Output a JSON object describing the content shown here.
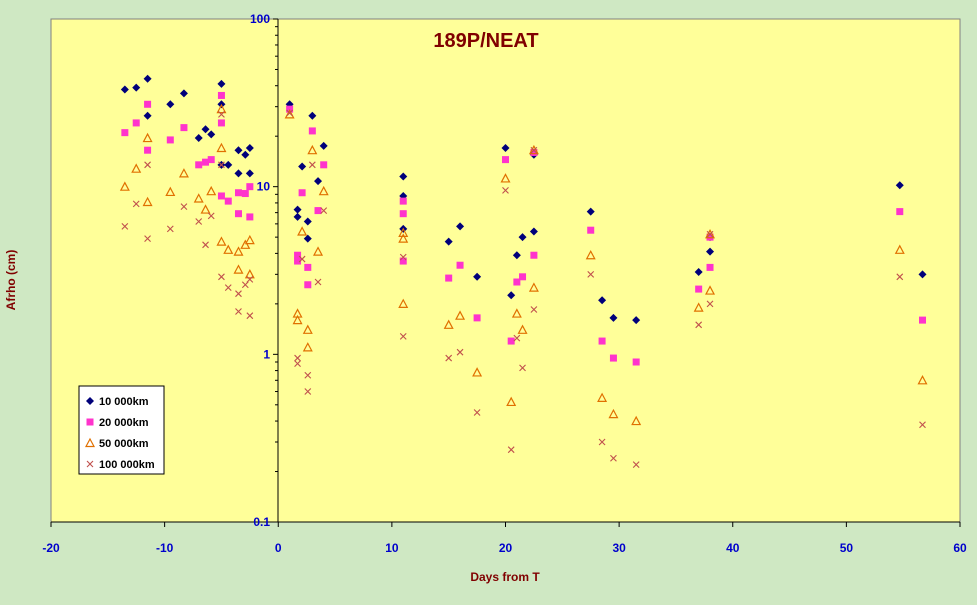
{
  "colors": {
    "background": "#cfe8c3",
    "plot_area": "#ffff99",
    "axis_text": "#0000cc",
    "axis_title": "#800000",
    "title": "#800000",
    "series": [
      "#00007a",
      "#ff33cc",
      "#e07000",
      "#c0504d"
    ]
  },
  "chart_data": {
    "type": "scatter",
    "title": "189P/NEAT",
    "xlabel": "Days from T",
    "ylabel": "Afrho (cm)",
    "xlim": [
      -20,
      60
    ],
    "ylim": [
      0.1,
      100
    ],
    "yscale": "log",
    "grid": false,
    "legend_position": "lower-left",
    "x_ticks": [
      {
        "value": -20,
        "label": "-20"
      },
      {
        "value": -10,
        "label": "-10"
      },
      {
        "value": 0,
        "label": "0"
      },
      {
        "value": 10,
        "label": "10"
      },
      {
        "value": 20,
        "label": "20"
      },
      {
        "value": 30,
        "label": "30"
      },
      {
        "value": 40,
        "label": "40"
      },
      {
        "value": 50,
        "label": "50"
      },
      {
        "value": 60,
        "label": "60"
      }
    ],
    "y_ticks": [
      {
        "value": 0.1,
        "label": "0.1"
      },
      {
        "value": 1,
        "label": "1"
      },
      {
        "value": 10,
        "label": "10"
      },
      {
        "value": 100,
        "label": "100"
      }
    ],
    "series": [
      {
        "name": "10 000km",
        "marker": "diamond",
        "points": [
          {
            "x": -13.5,
            "y": 38
          },
          {
            "x": -12.5,
            "y": 39
          },
          {
            "x": -11.5,
            "y": 44
          },
          {
            "x": -11.5,
            "y": 26.5
          },
          {
            "x": -9.5,
            "y": 31
          },
          {
            "x": -8.3,
            "y": 36
          },
          {
            "x": -7,
            "y": 19.5
          },
          {
            "x": -6.4,
            "y": 22
          },
          {
            "x": -5.9,
            "y": 20.5
          },
          {
            "x": -5,
            "y": 41
          },
          {
            "x": -5,
            "y": 31
          },
          {
            "x": -5,
            "y": 13.5
          },
          {
            "x": -4.4,
            "y": 13.5
          },
          {
            "x": -3.5,
            "y": 16.5
          },
          {
            "x": -3.5,
            "y": 12
          },
          {
            "x": -2.9,
            "y": 15.5
          },
          {
            "x": -2.5,
            "y": 17
          },
          {
            "x": -2.5,
            "y": 12
          },
          {
            "x": 1,
            "y": 31
          },
          {
            "x": 1.7,
            "y": 7.3
          },
          {
            "x": 1.7,
            "y": 6.6
          },
          {
            "x": 2.1,
            "y": 13.2
          },
          {
            "x": 2.6,
            "y": 6.2
          },
          {
            "x": 2.6,
            "y": 4.9
          },
          {
            "x": 3,
            "y": 26.5
          },
          {
            "x": 3.5,
            "y": 10.8
          },
          {
            "x": 4,
            "y": 17.5
          },
          {
            "x": 11,
            "y": 11.5
          },
          {
            "x": 11,
            "y": 8.8
          },
          {
            "x": 11,
            "y": 5.6
          },
          {
            "x": 15,
            "y": 4.7
          },
          {
            "x": 16,
            "y": 5.8
          },
          {
            "x": 17.5,
            "y": 2.9
          },
          {
            "x": 20,
            "y": 17
          },
          {
            "x": 20.5,
            "y": 2.25
          },
          {
            "x": 21,
            "y": 3.9
          },
          {
            "x": 21.5,
            "y": 5
          },
          {
            "x": 22.5,
            "y": 15.5
          },
          {
            "x": 22.5,
            "y": 5.4
          },
          {
            "x": 27.5,
            "y": 7.1
          },
          {
            "x": 28.5,
            "y": 2.1
          },
          {
            "x": 29.5,
            "y": 1.65
          },
          {
            "x": 31.5,
            "y": 1.6
          },
          {
            "x": 37,
            "y": 3.1
          },
          {
            "x": 38,
            "y": 5
          },
          {
            "x": 38,
            "y": 4.1
          },
          {
            "x": 54.7,
            "y": 10.2
          },
          {
            "x": 56.7,
            "y": 3
          }
        ]
      },
      {
        "name": "20 000km",
        "marker": "square",
        "points": [
          {
            "x": -13.5,
            "y": 21
          },
          {
            "x": -12.5,
            "y": 24
          },
          {
            "x": -11.5,
            "y": 31
          },
          {
            "x": -11.5,
            "y": 16.5
          },
          {
            "x": -9.5,
            "y": 19
          },
          {
            "x": -8.3,
            "y": 22.5
          },
          {
            "x": -7,
            "y": 13.5
          },
          {
            "x": -6.4,
            "y": 14
          },
          {
            "x": -5.9,
            "y": 14.5
          },
          {
            "x": -5,
            "y": 35
          },
          {
            "x": -5,
            "y": 24
          },
          {
            "x": -5,
            "y": 8.8
          },
          {
            "x": -4.4,
            "y": 8.2
          },
          {
            "x": -3.5,
            "y": 9.2
          },
          {
            "x": -3.5,
            "y": 6.9
          },
          {
            "x": -2.9,
            "y": 9.1
          },
          {
            "x": -2.5,
            "y": 10
          },
          {
            "x": -2.5,
            "y": 6.6
          },
          {
            "x": 1,
            "y": 29
          },
          {
            "x": 1.7,
            "y": 3.9
          },
          {
            "x": 1.7,
            "y": 3.6
          },
          {
            "x": 2.1,
            "y": 9.2
          },
          {
            "x": 2.6,
            "y": 3.3
          },
          {
            "x": 2.6,
            "y": 2.6
          },
          {
            "x": 3,
            "y": 21.5
          },
          {
            "x": 3.5,
            "y": 7.2
          },
          {
            "x": 4,
            "y": 13.5
          },
          {
            "x": 11,
            "y": 8.2
          },
          {
            "x": 11,
            "y": 6.9
          },
          {
            "x": 11,
            "y": 3.6
          },
          {
            "x": 15,
            "y": 2.85
          },
          {
            "x": 16,
            "y": 3.4
          },
          {
            "x": 17.5,
            "y": 1.65
          },
          {
            "x": 20,
            "y": 14.5
          },
          {
            "x": 20.5,
            "y": 1.2
          },
          {
            "x": 21,
            "y": 2.7
          },
          {
            "x": 21.5,
            "y": 2.9
          },
          {
            "x": 22.5,
            "y": 16
          },
          {
            "x": 22.5,
            "y": 3.9
          },
          {
            "x": 27.5,
            "y": 5.5
          },
          {
            "x": 28.5,
            "y": 1.2
          },
          {
            "x": 29.5,
            "y": 0.95
          },
          {
            "x": 31.5,
            "y": 0.9
          },
          {
            "x": 37,
            "y": 2.45
          },
          {
            "x": 38,
            "y": 5
          },
          {
            "x": 38,
            "y": 3.3
          },
          {
            "x": 54.7,
            "y": 7.1
          },
          {
            "x": 56.7,
            "y": 1.6
          }
        ]
      },
      {
        "name": "50 000km",
        "marker": "triangle",
        "points": [
          {
            "x": -13.5,
            "y": 10
          },
          {
            "x": -12.5,
            "y": 12.8
          },
          {
            "x": -11.5,
            "y": 19.5
          },
          {
            "x": -11.5,
            "y": 8.1
          },
          {
            "x": -9.5,
            "y": 9.3
          },
          {
            "x": -8.3,
            "y": 12
          },
          {
            "x": -7,
            "y": 8.5
          },
          {
            "x": -6.4,
            "y": 7.3
          },
          {
            "x": -5.9,
            "y": 9.4
          },
          {
            "x": -5,
            "y": 29
          },
          {
            "x": -5,
            "y": 17
          },
          {
            "x": -5,
            "y": 4.7
          },
          {
            "x": -4.4,
            "y": 4.2
          },
          {
            "x": -3.5,
            "y": 4.1
          },
          {
            "x": -3.5,
            "y": 3.2
          },
          {
            "x": -2.9,
            "y": 4.5
          },
          {
            "x": -2.5,
            "y": 4.8
          },
          {
            "x": -2.5,
            "y": 3
          },
          {
            "x": 1,
            "y": 27
          },
          {
            "x": 1.7,
            "y": 1.75
          },
          {
            "x": 1.7,
            "y": 1.6
          },
          {
            "x": 2.1,
            "y": 5.4
          },
          {
            "x": 2.6,
            "y": 1.4
          },
          {
            "x": 2.6,
            "y": 1.1
          },
          {
            "x": 3,
            "y": 16.5
          },
          {
            "x": 3.5,
            "y": 4.1
          },
          {
            "x": 4,
            "y": 9.4
          },
          {
            "x": 11,
            "y": 5.3
          },
          {
            "x": 11,
            "y": 4.9
          },
          {
            "x": 11,
            "y": 2
          },
          {
            "x": 15,
            "y": 1.5
          },
          {
            "x": 16,
            "y": 1.7
          },
          {
            "x": 17.5,
            "y": 0.78
          },
          {
            "x": 20,
            "y": 11.2
          },
          {
            "x": 20.5,
            "y": 0.52
          },
          {
            "x": 21,
            "y": 1.75
          },
          {
            "x": 21.5,
            "y": 1.4
          },
          {
            "x": 22.5,
            "y": 16.5
          },
          {
            "x": 22.5,
            "y": 2.5
          },
          {
            "x": 27.5,
            "y": 3.9
          },
          {
            "x": 28.5,
            "y": 0.55
          },
          {
            "x": 29.5,
            "y": 0.44
          },
          {
            "x": 31.5,
            "y": 0.4
          },
          {
            "x": 37,
            "y": 1.9
          },
          {
            "x": 38,
            "y": 5.2
          },
          {
            "x": 38,
            "y": 2.4
          },
          {
            "x": 54.7,
            "y": 4.2
          },
          {
            "x": 56.7,
            "y": 0.7
          }
        ]
      },
      {
        "name": "100 000km",
        "marker": "x",
        "points": [
          {
            "x": -13.5,
            "y": 5.8
          },
          {
            "x": -12.5,
            "y": 7.9
          },
          {
            "x": -11.5,
            "y": 13.5
          },
          {
            "x": -11.5,
            "y": 4.9
          },
          {
            "x": -9.5,
            "y": 5.6
          },
          {
            "x": -8.3,
            "y": 7.6
          },
          {
            "x": -7,
            "y": 6.2
          },
          {
            "x": -6.4,
            "y": 4.5
          },
          {
            "x": -5.9,
            "y": 6.7
          },
          {
            "x": -5,
            "y": 27
          },
          {
            "x": -5,
            "y": 13.5
          },
          {
            "x": -5,
            "y": 2.9
          },
          {
            "x": -4.4,
            "y": 2.5
          },
          {
            "x": -3.5,
            "y": 2.3
          },
          {
            "x": -3.5,
            "y": 1.8
          },
          {
            "x": -2.9,
            "y": 2.6
          },
          {
            "x": -2.5,
            "y": 2.8
          },
          {
            "x": -2.5,
            "y": 1.7
          },
          {
            "x": 1,
            "y": 27.5
          },
          {
            "x": 1.7,
            "y": 0.95
          },
          {
            "x": 1.7,
            "y": 0.88
          },
          {
            "x": 2.1,
            "y": 3.7
          },
          {
            "x": 2.6,
            "y": 0.75
          },
          {
            "x": 2.6,
            "y": 0.6
          },
          {
            "x": 3,
            "y": 13.5
          },
          {
            "x": 3.5,
            "y": 2.7
          },
          {
            "x": 4,
            "y": 7.2
          },
          {
            "x": 11,
            "y": 3.8
          },
          {
            "x": 11,
            "y": 1.28
          },
          {
            "x": 15,
            "y": 0.95
          },
          {
            "x": 16,
            "y": 1.03
          },
          {
            "x": 17.5,
            "y": 0.45
          },
          {
            "x": 20,
            "y": 9.5
          },
          {
            "x": 20.5,
            "y": 0.27
          },
          {
            "x": 21,
            "y": 1.25
          },
          {
            "x": 21.5,
            "y": 0.83
          },
          {
            "x": 22.5,
            "y": 16.5
          },
          {
            "x": 22.5,
            "y": 1.85
          },
          {
            "x": 27.5,
            "y": 3
          },
          {
            "x": 28.5,
            "y": 0.3
          },
          {
            "x": 29.5,
            "y": 0.24
          },
          {
            "x": 31.5,
            "y": 0.22
          },
          {
            "x": 37,
            "y": 1.5
          },
          {
            "x": 38,
            "y": 5.2
          },
          {
            "x": 38,
            "y": 2
          },
          {
            "x": 54.7,
            "y": 2.9
          },
          {
            "x": 56.7,
            "y": 0.38
          }
        ]
      }
    ]
  }
}
